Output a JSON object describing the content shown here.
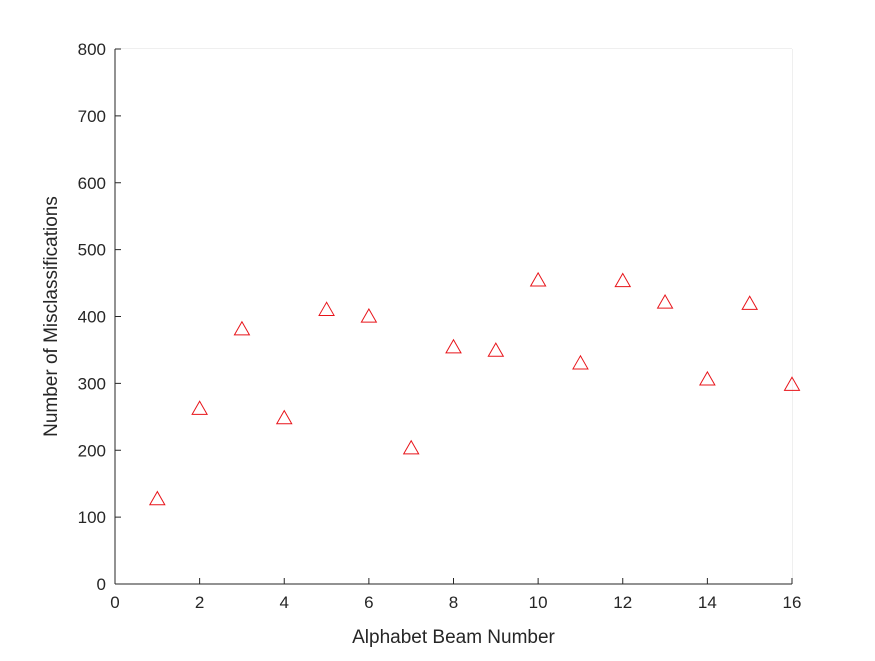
{
  "chart_data": {
    "type": "scatter",
    "title": "",
    "xlabel": "Alphabet Beam Number",
    "ylabel": "Number of Misclassifications",
    "xlim": [
      0,
      16
    ],
    "ylim": [
      0,
      800
    ],
    "xticks": [
      0,
      2,
      4,
      6,
      8,
      10,
      12,
      14,
      16
    ],
    "yticks": [
      0,
      100,
      200,
      300,
      400,
      500,
      600,
      700,
      800
    ],
    "grid": true,
    "legend": "none",
    "marker": "triangle",
    "marker_color": "#e8141a",
    "series": [
      {
        "x": [
          1,
          2,
          3,
          4,
          5,
          6,
          7,
          8,
          9,
          10,
          11,
          12,
          13,
          14,
          15,
          16
        ],
        "y": [
          127,
          262,
          381,
          248,
          410,
          400,
          203,
          354,
          349,
          454,
          330,
          453,
          421,
          306,
          419,
          298
        ]
      }
    ]
  }
}
